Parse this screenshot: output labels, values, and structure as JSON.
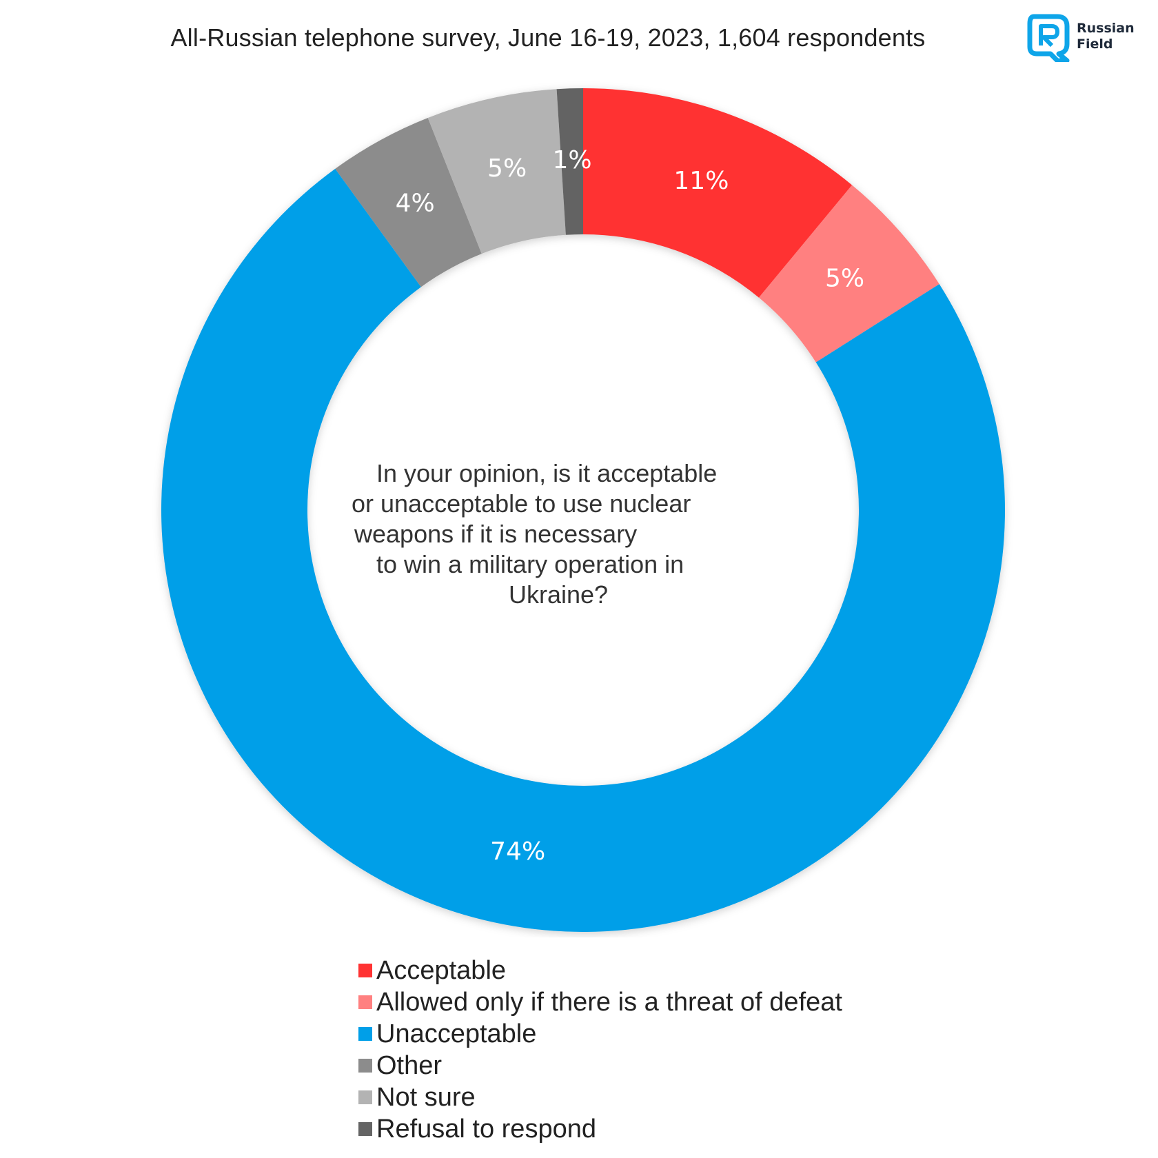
{
  "header": {
    "title": "All-Russian telephone survey, June 16-19, 2023, 1,604 respondents"
  },
  "logo": {
    "line1": "Russian",
    "line2": "Field",
    "color": "#0ea5e9"
  },
  "question": {
    "lines": [
      "In your opinion, is it acceptable",
      "or unacceptable to use nuclear",
      "weapons if it is necessary",
      "to win a military operation in",
      "Ukraine?"
    ]
  },
  "chart_data": {
    "type": "pie",
    "donut": true,
    "start_angle_deg": 0,
    "direction": "clockwise",
    "legend_position": "bottom",
    "slices": [
      {
        "label": "Acceptable",
        "value": 11,
        "display": "11%",
        "color": "#ff3333"
      },
      {
        "label": "Allowed only if there is a threat of defeat",
        "value": 5,
        "display": "5%",
        "color": "#ff8080"
      },
      {
        "label": "Unacceptable",
        "value": 74,
        "display": "74%",
        "color": "#009fe8"
      },
      {
        "label": "Other",
        "value": 4,
        "display": "4%",
        "color": "#8c8c8c"
      },
      {
        "label": "Not sure",
        "value": 5,
        "display": "5%",
        "color": "#b3b3b3"
      },
      {
        "label": "Refusal to respond",
        "value": 1,
        "display": "1%",
        "color": "#646464"
      }
    ]
  }
}
